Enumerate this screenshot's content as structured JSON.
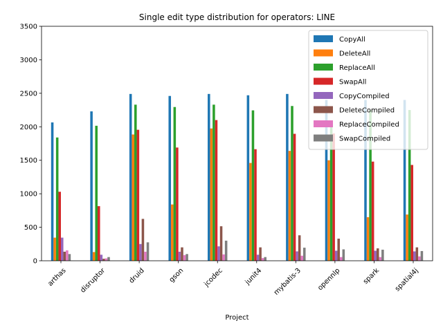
{
  "chart_data": {
    "type": "bar",
    "title": "Single edit type distribution for operators: LINE",
    "xlabel": "Project",
    "ylabel": "",
    "ylim": [
      0,
      3500
    ],
    "yticks": [
      0,
      500,
      1000,
      1500,
      2000,
      2500,
      3000,
      3500
    ],
    "grid": false,
    "legend_position": "top-right",
    "categories": [
      "arthas",
      "disruptor",
      "druid",
      "gson",
      "jcodec",
      "junit4",
      "mybatis-3",
      "opennlp",
      "spark",
      "spatial4j"
    ],
    "series": [
      {
        "name": "CopyAll",
        "color": "#1f77b4",
        "values": [
          2065,
          2230,
          2490,
          2460,
          2490,
          2470,
          2490,
          2400,
          2400,
          2400
        ]
      },
      {
        "name": "DeleteAll",
        "color": "#ff7f0e",
        "values": [
          345,
          130,
          1885,
          840,
          1975,
          1460,
          1640,
          1500,
          650,
          690
        ]
      },
      {
        "name": "ReplaceAll",
        "color": "#2ca02c",
        "values": [
          1840,
          2015,
          2330,
          2295,
          2330,
          2245,
          2310,
          2000,
          2250,
          2250
        ]
      },
      {
        "name": "SwapAll",
        "color": "#d62728",
        "values": [
          1030,
          815,
          1955,
          1690,
          2100,
          1665,
          1895,
          1900,
          1480,
          1430
        ]
      },
      {
        "name": "CopyCompiled",
        "color": "#9467bd",
        "values": [
          345,
          90,
          250,
          135,
          215,
          90,
          140,
          150,
          150,
          140
        ]
      },
      {
        "name": "DeleteCompiled",
        "color": "#8c564b",
        "values": [
          135,
          30,
          625,
          200,
          515,
          200,
          380,
          330,
          185,
          200
        ]
      },
      {
        "name": "ReplaceCompiled",
        "color": "#e377c2",
        "values": [
          155,
          35,
          135,
          85,
          95,
          40,
          75,
          55,
          55,
          65
        ]
      },
      {
        "name": "SwapCompiled",
        "color": "#7f7f7f",
        "values": [
          100,
          55,
          275,
          100,
          300,
          55,
          195,
          170,
          165,
          145
        ]
      }
    ]
  }
}
